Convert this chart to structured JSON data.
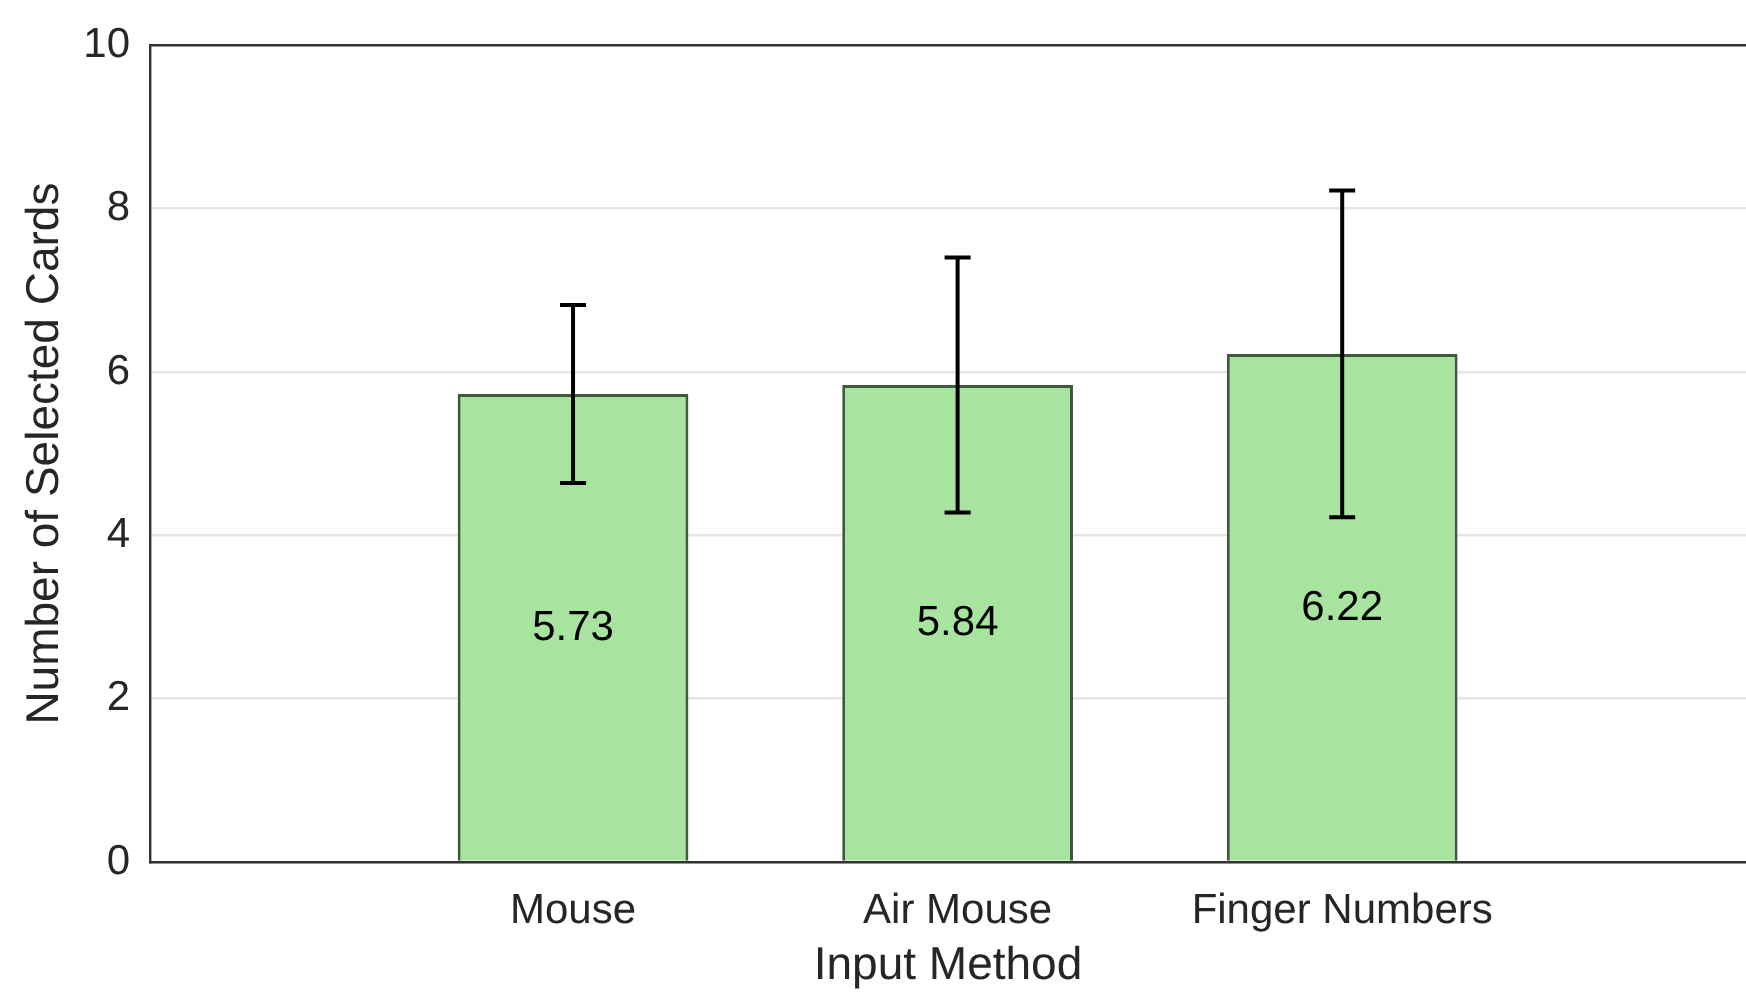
{
  "chart_data": {
    "type": "bar",
    "xlabel": "Input Method",
    "ylabel": "Number of Selected Cards",
    "categories": [
      "Mouse",
      "Air Mouse",
      "Finger Numbers"
    ],
    "values": [
      5.73,
      5.84,
      6.22
    ],
    "errors": [
      1.09,
      1.56,
      2.0
    ],
    "color": "#a8e4a0",
    "ylim": [
      0,
      10
    ],
    "yticks": [
      0,
      2,
      4,
      6,
      8,
      10
    ],
    "grid": "y",
    "data_labels": true
  }
}
